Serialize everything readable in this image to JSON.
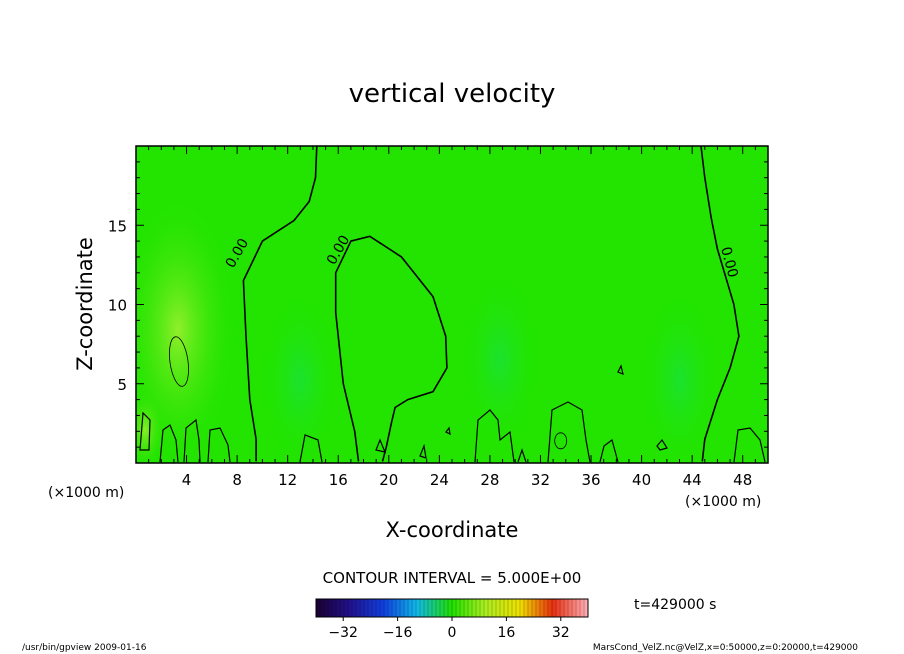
{
  "chart_data": {
    "type": "heatmap",
    "title": "vertical velocity",
    "xlabel": "X-coordinate",
    "ylabel": "Z-coordinate",
    "x_unit_left": "(×1000 m)",
    "x_unit_right": "(×1000 m)",
    "xlim": [
      0,
      50
    ],
    "ylim": [
      0,
      20
    ],
    "x_ticks": [
      4,
      8,
      12,
      16,
      20,
      24,
      28,
      32,
      36,
      40,
      44,
      48
    ],
    "y_ticks": [
      5,
      10,
      15
    ],
    "contour_labels": [
      {
        "text": "0.00",
        "x": 8.3,
        "z": 13.1
      },
      {
        "text": "0.00",
        "x": 16.3,
        "z": 13.3
      },
      {
        "text": "0.00",
        "x": 46.6,
        "z": 12.6
      }
    ],
    "zero_contours": [
      [
        [
          9.5,
          0.1
        ],
        [
          9.5,
          1.5
        ],
        [
          9.0,
          4.0
        ],
        [
          8.7,
          8.0
        ],
        [
          8.5,
          11.5
        ],
        [
          10.0,
          14.0
        ],
        [
          12.5,
          15.3
        ],
        [
          13.7,
          16.5
        ],
        [
          14.2,
          18.0
        ],
        [
          14.3,
          20.0
        ]
      ],
      [
        [
          17.6,
          0.1
        ],
        [
          17.3,
          2.0
        ],
        [
          16.4,
          5.0
        ],
        [
          15.8,
          9.5
        ],
        [
          15.8,
          12.0
        ],
        [
          17.0,
          14.0
        ],
        [
          18.5,
          14.3
        ],
        [
          21.0,
          13.0
        ],
        [
          23.5,
          10.5
        ],
        [
          24.5,
          8.0
        ],
        [
          24.6,
          6.0
        ],
        [
          23.5,
          4.5
        ],
        [
          21.5,
          4.0
        ],
        [
          20.5,
          3.5
        ],
        [
          20.2,
          2.5
        ],
        [
          19.8,
          1.0
        ],
        [
          19.5,
          0.1
        ]
      ],
      [
        [
          44.8,
          0.1
        ],
        [
          45.0,
          1.5
        ],
        [
          46.0,
          4.0
        ],
        [
          47.0,
          6.0
        ],
        [
          47.7,
          8.0
        ],
        [
          47.3,
          10.0
        ],
        [
          46.0,
          13.5
        ],
        [
          45.5,
          15.5
        ],
        [
          45.0,
          18.0
        ],
        [
          44.7,
          20.0
        ]
      ]
    ],
    "positive_cells": [
      {
        "x": 3.4,
        "z": 6.4
      }
    ],
    "colorbar": {
      "title": "CONTOUR INTERVAL = 5.000E+00",
      "ticks": [
        "−32",
        "−16",
        "0",
        "16",
        "32"
      ],
      "range": [
        -40,
        40
      ]
    },
    "time_label": "t=429000 s",
    "footer_left": "/usr/bin/gpview  2009-01-16",
    "footer_right": "MarsCond_VelZ.nc@VelZ,x=0:50000,z=0:20000,t=429000"
  }
}
